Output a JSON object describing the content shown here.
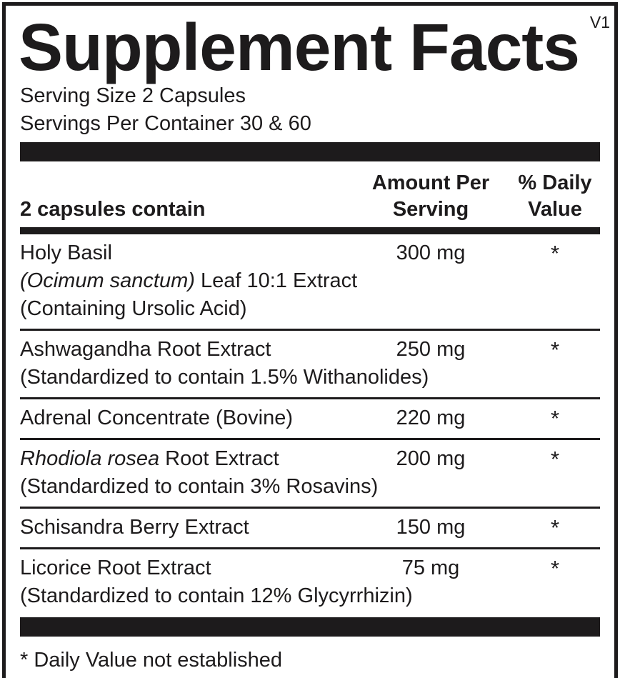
{
  "colors": {
    "ink": "#1d1b1c",
    "background": "#ffffff"
  },
  "label": {
    "title": "Supplement Facts",
    "version": "V1",
    "serving_size": "Serving Size 2 Capsules",
    "servings_per_container": "Servings Per Container 30 & 60",
    "header": {
      "col_ingredient": "2 capsules contain",
      "col_amount_line1": "Amount Per",
      "col_amount_line2": "Serving",
      "col_dv_line1": "% Daily",
      "col_dv_line2": "Value"
    },
    "rows": [
      {
        "name": [
          {
            "text": "Holy Basil",
            "italic": false
          }
        ],
        "amount": "300 mg",
        "dv": "*",
        "sublines": [
          [
            {
              "text": "(Ocimum sanctum)",
              "italic": true
            },
            {
              "text": " Leaf 10:1 Extract",
              "italic": false
            }
          ],
          [
            {
              "text": "(Containing Ursolic Acid)",
              "italic": false
            }
          ]
        ]
      },
      {
        "name": [
          {
            "text": "Ashwagandha Root Extract",
            "italic": false
          }
        ],
        "amount": "250 mg",
        "dv": "*",
        "sublines": [
          [
            {
              "text": "(Standardized to contain 1.5% Withanolides)",
              "italic": false
            }
          ]
        ]
      },
      {
        "name": [
          {
            "text": "Adrenal Concentrate (Bovine)",
            "italic": false
          }
        ],
        "amount": "220 mg",
        "dv": "*",
        "sublines": []
      },
      {
        "name": [
          {
            "text": "Rhodiola rosea",
            "italic": true
          },
          {
            "text": " Root Extract",
            "italic": false
          }
        ],
        "amount": "200 mg",
        "dv": "*",
        "sublines": [
          [
            {
              "text": "(Standardized to contain 3% Rosavins)",
              "italic": false
            }
          ]
        ]
      },
      {
        "name": [
          {
            "text": "Schisandra Berry Extract",
            "italic": false
          }
        ],
        "amount": "150 mg",
        "dv": "*",
        "sublines": []
      },
      {
        "name": [
          {
            "text": "Licorice Root Extract",
            "italic": false
          }
        ],
        "amount": "75 mg",
        "dv": "*",
        "sublines": [
          [
            {
              "text": "(Standardized to contain 12% Glycyrrhizin)",
              "italic": false
            }
          ]
        ]
      }
    ],
    "footnote": "* Daily Value not established"
  }
}
